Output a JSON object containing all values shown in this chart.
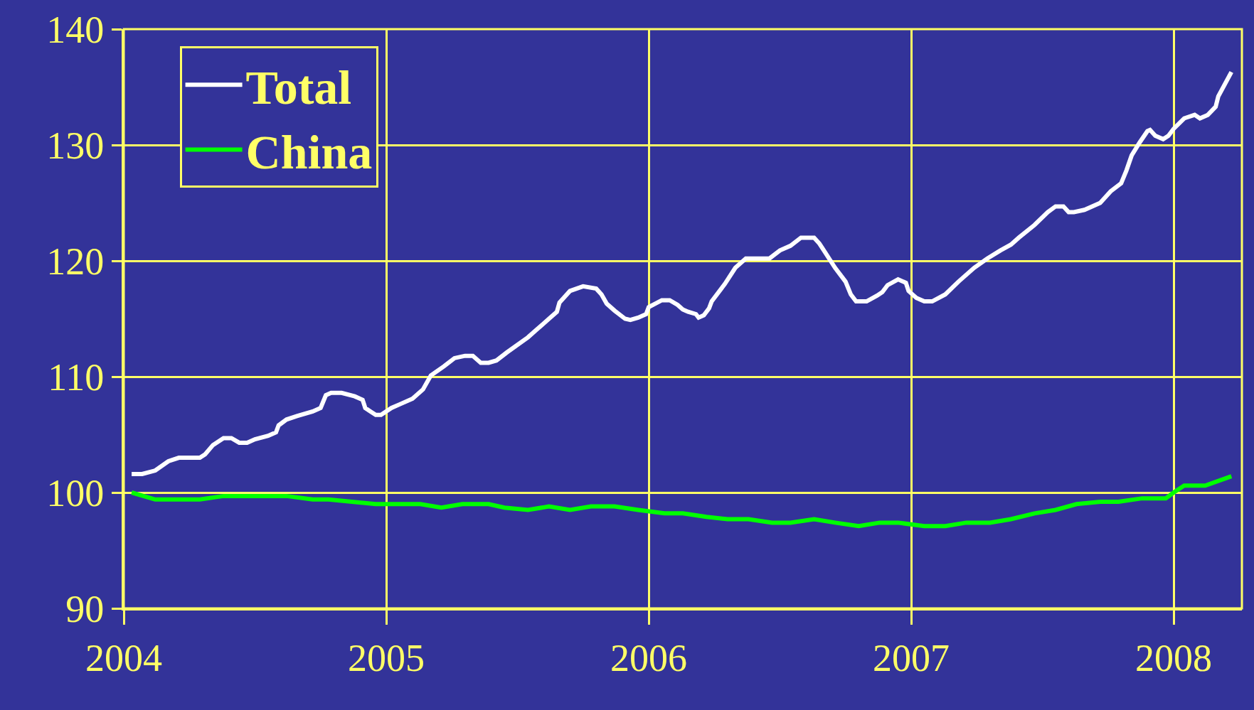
{
  "chart_data": {
    "type": "line",
    "xlim": [
      2004.0,
      2008.26
    ],
    "xticks": [
      2004,
      2005,
      2006,
      2007,
      2008
    ],
    "ylim": [
      90,
      140
    ],
    "yticks": [
      90,
      100,
      110,
      120,
      130,
      140
    ],
    "grid": true,
    "legend": "top left",
    "marker": "none",
    "line_style": "solid",
    "series": [
      {
        "name": "Total",
        "color": "#ffffff",
        "x": [
          2004.03,
          2004.07,
          2004.12,
          2004.17,
          2004.21,
          2004.29,
          2004.31,
          2004.34,
          2004.38,
          2004.41,
          2004.44,
          2004.47,
          2004.5,
          2004.55,
          2004.58,
          2004.59,
          2004.62,
          2004.66,
          2004.72,
          2004.75,
          2004.77,
          2004.79,
          2004.83,
          2004.88,
          2004.91,
          2004.92,
          2004.94,
          2004.96,
          2004.98,
          2005.02,
          2005.05,
          2005.1,
          2005.14,
          2005.17,
          2005.22,
          2005.26,
          2005.3,
          2005.33,
          2005.36,
          2005.39,
          2005.42,
          2005.46,
          2005.54,
          2005.57,
          2005.62,
          2005.65,
          2005.66,
          2005.7,
          2005.75,
          2005.8,
          2005.82,
          2005.84,
          2005.87,
          2005.91,
          2005.93,
          2005.96,
          2005.99,
          2006.0,
          2006.05,
          2006.08,
          2006.11,
          2006.13,
          2006.15,
          2006.18,
          2006.19,
          2006.21,
          2006.23,
          2006.24,
          2006.29,
          2006.33,
          2006.37,
          2006.46,
          2006.5,
          2006.54,
          2006.58,
          2006.63,
          2006.65,
          2006.67,
          2006.71,
          2006.75,
          2006.77,
          2006.79,
          2006.83,
          2006.87,
          2006.89,
          2006.91,
          2006.95,
          2006.98,
          2006.99,
          2007.02,
          2007.05,
          2007.08,
          2007.13,
          2007.18,
          2007.24,
          2007.29,
          2007.34,
          2007.38,
          2007.41,
          2007.47,
          2007.52,
          2007.55,
          2007.58,
          2007.6,
          2007.62,
          2007.66,
          2007.72,
          2007.76,
          2007.8,
          2007.82,
          2007.84,
          2007.87,
          2007.9,
          2007.91,
          2007.93,
          2007.96,
          2007.98,
          2008.0,
          2008.04,
          2008.08,
          2008.1,
          2008.13,
          2008.16,
          2008.17,
          2008.22
        ],
        "values": [
          101.6,
          101.6,
          101.9,
          102.7,
          103.0,
          103.0,
          103.3,
          104.1,
          104.7,
          104.7,
          104.3,
          104.3,
          104.6,
          104.9,
          105.2,
          105.8,
          106.3,
          106.6,
          107.0,
          107.3,
          108.4,
          108.6,
          108.6,
          108.3,
          108.0,
          107.3,
          107.0,
          106.7,
          106.7,
          107.3,
          107.6,
          108.1,
          108.9,
          110.1,
          110.9,
          111.6,
          111.8,
          111.8,
          111.2,
          111.2,
          111.4,
          112.1,
          113.4,
          114.0,
          115.0,
          115.6,
          116.4,
          117.4,
          117.8,
          117.6,
          117.1,
          116.3,
          115.7,
          115.0,
          114.9,
          115.1,
          115.4,
          116.0,
          116.6,
          116.6,
          116.2,
          115.8,
          115.6,
          115.4,
          115.1,
          115.3,
          115.9,
          116.5,
          118.0,
          119.4,
          120.2,
          120.2,
          120.9,
          121.3,
          122.0,
          122.0,
          121.5,
          120.8,
          119.4,
          118.2,
          117.1,
          116.5,
          116.5,
          117.0,
          117.3,
          117.9,
          118.4,
          118.1,
          117.4,
          116.8,
          116.5,
          116.5,
          117.1,
          118.2,
          119.4,
          120.2,
          120.9,
          121.4,
          122.0,
          123.1,
          124.2,
          124.7,
          124.7,
          124.2,
          124.2,
          124.4,
          125.0,
          126.0,
          126.7,
          127.8,
          129.1,
          130.2,
          131.2,
          131.3,
          130.8,
          130.5,
          130.8,
          131.4,
          132.3,
          132.6,
          132.3,
          132.6,
          133.3,
          134.2,
          136.3
        ]
      },
      {
        "name": "China",
        "color": "#00ff00",
        "x": [
          2004.03,
          2004.12,
          2004.29,
          2004.38,
          2004.62,
          2004.72,
          2004.78,
          2004.96,
          2005.13,
          2005.21,
          2005.29,
          2005.39,
          2005.45,
          2005.54,
          2005.62,
          2005.7,
          2005.78,
          2005.87,
          2005.96,
          2006.06,
          2006.13,
          2006.22,
          2006.3,
          2006.38,
          2006.47,
          2006.54,
          2006.63,
          2006.71,
          2006.8,
          2006.88,
          2006.95,
          2007.05,
          2007.13,
          2007.21,
          2007.3,
          2007.38,
          2007.47,
          2007.55,
          2007.63,
          2007.72,
          2007.79,
          2007.88,
          2007.97,
          2008.0,
          2008.04,
          2008.12,
          2008.22
        ],
        "values": [
          100.0,
          99.4,
          99.4,
          99.7,
          99.7,
          99.4,
          99.4,
          99.0,
          99.0,
          98.7,
          99.0,
          99.0,
          98.7,
          98.5,
          98.8,
          98.5,
          98.8,
          98.8,
          98.5,
          98.2,
          98.2,
          97.9,
          97.7,
          97.7,
          97.4,
          97.4,
          97.7,
          97.4,
          97.1,
          97.4,
          97.4,
          97.1,
          97.1,
          97.4,
          97.4,
          97.7,
          98.2,
          98.5,
          99.0,
          99.2,
          99.2,
          99.5,
          99.5,
          100.0,
          100.6,
          100.6,
          101.4
        ]
      }
    ]
  }
}
